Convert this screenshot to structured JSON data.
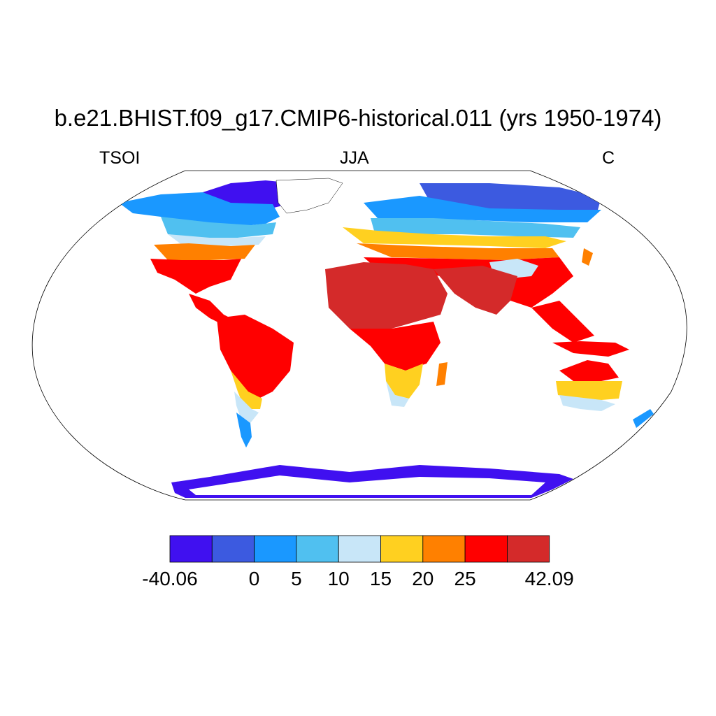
{
  "title": "b.e21.BHIST.f09_g17.CMIP6-historical.011 (yrs 1950-1974)",
  "subtitle_left": "TSOI",
  "subtitle_center": "JJA",
  "subtitle_right": "C",
  "colors": {
    "background": "#ffffff",
    "land_bins": [
      "#4010f0",
      "#3c5ae0",
      "#1a98ff",
      "#50c0f0",
      "#c8e6f8",
      "#ffd020",
      "#ff8000",
      "#ff0000",
      "#d42a2a"
    ]
  },
  "colorbar": {
    "bin_colors": [
      "#4010f0",
      "#3c5ae0",
      "#1a98ff",
      "#50c0f0",
      "#c8e6f8",
      "#ffd020",
      "#ff8000",
      "#ff0000",
      "#d42a2a"
    ],
    "edges": [
      -40.06,
      null,
      0,
      5,
      10,
      15,
      20,
      25,
      null,
      42.09
    ],
    "tick_labels": [
      "-40.06",
      "0",
      "5",
      "10",
      "15",
      "20",
      "25",
      "42.09"
    ]
  }
}
